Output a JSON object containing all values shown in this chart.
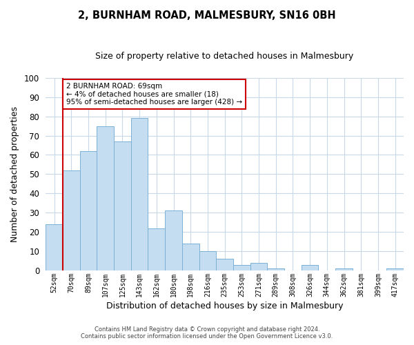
{
  "title": "2, BURNHAM ROAD, MALMESBURY, SN16 0BH",
  "subtitle": "Size of property relative to detached houses in Malmesbury",
  "xlabel": "Distribution of detached houses by size in Malmesbury",
  "ylabel": "Number of detached properties",
  "bar_labels": [
    "52sqm",
    "70sqm",
    "89sqm",
    "107sqm",
    "125sqm",
    "143sqm",
    "162sqm",
    "180sqm",
    "198sqm",
    "216sqm",
    "235sqm",
    "253sqm",
    "271sqm",
    "289sqm",
    "308sqm",
    "326sqm",
    "344sqm",
    "362sqm",
    "381sqm",
    "399sqm",
    "417sqm"
  ],
  "bar_values": [
    24,
    52,
    62,
    75,
    67,
    79,
    22,
    31,
    14,
    10,
    6,
    3,
    4,
    1,
    0,
    3,
    0,
    1,
    0,
    0,
    1
  ],
  "bar_color": "#c5ddf0",
  "bar_edge_color": "#7ab0d4",
  "annotation_box_text": "2 BURNHAM ROAD: 69sqm\n← 4% of detached houses are smaller (18)\n95% of semi-detached houses are larger (428) →",
  "annotation_box_edge_color": "#cc0000",
  "vline_color": "#cc0000",
  "ylim": [
    0,
    100
  ],
  "yticks": [
    0,
    10,
    20,
    30,
    40,
    50,
    60,
    70,
    80,
    90,
    100
  ],
  "footer_line1": "Contains HM Land Registry data © Crown copyright and database right 2024.",
  "footer_line2": "Contains public sector information licensed under the Open Government Licence v3.0.",
  "background_color": "#ffffff",
  "grid_color": "#c8d8e8"
}
